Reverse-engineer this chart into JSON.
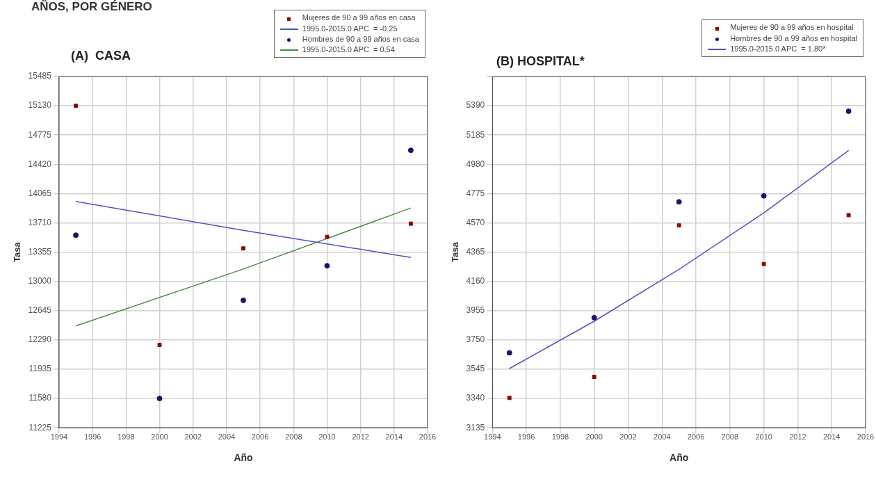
{
  "chart_data": [
    {
      "type": "scatter",
      "title": "AÑOS, POR GÉNERO",
      "subtitle": "(A)  CASA",
      "xlabel": "Año",
      "ylabel": "Tasa",
      "xlim": [
        1994,
        2016
      ],
      "xticks": [
        1994,
        1996,
        1998,
        2000,
        2002,
        2004,
        2006,
        2008,
        2010,
        2012,
        2014,
        2016
      ],
      "ylim": [
        11225,
        15485
      ],
      "yticks": [
        11225,
        11580,
        11935,
        12290,
        12645,
        13000,
        13355,
        13710,
        14065,
        14420,
        14775,
        15130,
        15485
      ],
      "grid": true,
      "legend": "top right",
      "series": [
        {
          "name": "Mujeres de 90 a 99 años en casa",
          "type": "scatter",
          "marker": "square",
          "color": "#8b0a0a",
          "x": [
            1995,
            2000,
            2005,
            2010,
            2015
          ],
          "values": [
            15130,
            12230,
            13400,
            13540,
            13700
          ]
        },
        {
          "name": "1995.0-2015.0 APC  = -0.25",
          "type": "line",
          "color": "#5050c8",
          "x": [
            1995,
            2005,
            2015
          ],
          "values": [
            13970,
            13620,
            13290
          ]
        },
        {
          "name": "Hombres de 90 a 99 años en casa",
          "type": "scatter",
          "marker": "circle",
          "color": "#1c1466",
          "x": [
            1995,
            2000,
            2005,
            2010,
            2015
          ],
          "values": [
            13560,
            11580,
            12770,
            13190,
            14590
          ]
        },
        {
          "name": "1995.0-2015.0 APC  = 0.54",
          "type": "line",
          "color": "#4a8a4a",
          "x": [
            1995,
            2005,
            2015
          ],
          "values": [
            12460,
            13150,
            13890
          ]
        }
      ]
    },
    {
      "type": "scatter",
      "subtitle": "(B) HOSPITAL*",
      "xlabel": "Año",
      "ylabel": "Tasa",
      "xlim": [
        1994,
        2016
      ],
      "xticks": [
        1994,
        1996,
        1998,
        2000,
        2002,
        2004,
        2006,
        2008,
        2010,
        2012,
        2014,
        2016
      ],
      "ylim": [
        3135,
        5595
      ],
      "yticks": [
        3135,
        3340,
        3545,
        3750,
        3955,
        4160,
        4365,
        4570,
        4775,
        4980,
        5185,
        5390,
        {
          "value": 5595,
          "label": null
        }
      ],
      "grid": true,
      "legend": "top right",
      "series": [
        {
          "name": "Mujeres de 90 a 99 años en hospital",
          "type": "scatter",
          "marker": "square",
          "color": "#8b0a0a",
          "x": [
            1995,
            2000,
            2005,
            2010,
            2015
          ],
          "values": [
            3344,
            3491,
            4552,
            4282,
            4624
          ]
        },
        {
          "name": "Hombres de 90 a 99 años en hospital",
          "type": "scatter",
          "marker": "circle",
          "color": "#1c1466",
          "x": [
            1995,
            2000,
            2005,
            2010,
            2015
          ],
          "values": [
            3660,
            3906,
            4717,
            4759,
            5352
          ]
        },
        {
          "name": "1995.0-2015.0 APC  = 1.80*",
          "type": "line",
          "color": "#5050c8",
          "x": [
            1995,
            2000,
            2005,
            2010,
            2015
          ],
          "values": [
            3550,
            3881,
            4244,
            4640,
            5077
          ]
        }
      ]
    }
  ]
}
